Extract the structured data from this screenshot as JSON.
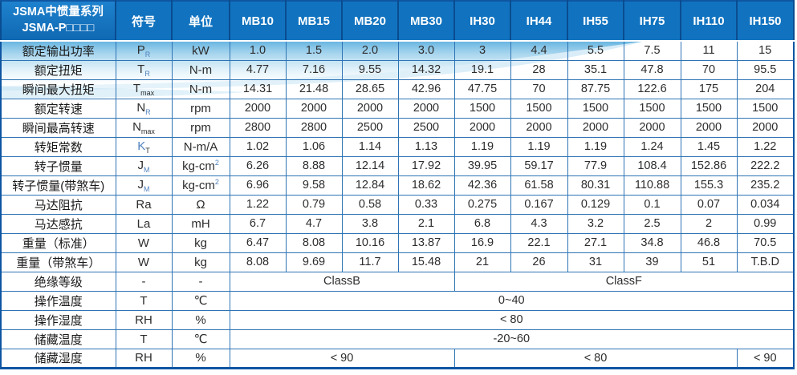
{
  "table": {
    "title_line1": "JSMA中惯量系列",
    "title_line2": "JSMA-P□□□□",
    "col_headers": [
      "符号",
      "单位",
      "MB10",
      "MB15",
      "MB20",
      "MB30",
      "IH30",
      "IH44",
      "IH55",
      "IH75",
      "IH110",
      "IH150"
    ],
    "rows": [
      {
        "label": "额定输出功率",
        "symbol": {
          "main": "P",
          "sub": "R",
          "sub_blue": true
        },
        "unit": {
          "text": "kW"
        },
        "values": [
          "1.0",
          "1.5",
          "2.0",
          "3.0",
          "3",
          "4.4",
          "5.5",
          "7.5",
          "11",
          "15"
        ]
      },
      {
        "label": "额定扭矩",
        "symbol": {
          "main": "T",
          "sub": "R",
          "sub_blue": true
        },
        "unit": {
          "text": "N-m"
        },
        "values": [
          "4.77",
          "7.16",
          "9.55",
          "14.32",
          "19.1",
          "28",
          "35.1",
          "47.8",
          "70",
          "95.5"
        ]
      },
      {
        "label": "瞬间最大扭矩",
        "symbol": {
          "main": "T",
          "sub": "max"
        },
        "unit": {
          "text": "N-m"
        },
        "values": [
          "14.31",
          "21.48",
          "28.65",
          "42.96",
          "47.75",
          "70",
          "87.75",
          "122.6",
          "175",
          "204"
        ]
      },
      {
        "label": "额定转速",
        "symbol": {
          "main": "N",
          "sub": "R",
          "sub_blue": true
        },
        "unit": {
          "text": "rpm"
        },
        "values": [
          "2000",
          "2000",
          "2000",
          "2000",
          "1500",
          "1500",
          "1500",
          "1500",
          "1500",
          "1500"
        ]
      },
      {
        "label": "瞬间最高转速",
        "symbol": {
          "main": "N",
          "sub": "max"
        },
        "unit": {
          "text": "rpm"
        },
        "values": [
          "2800",
          "2800",
          "2500",
          "2500",
          "2000",
          "2000",
          "2000",
          "2000",
          "2000",
          "2000"
        ]
      },
      {
        "label": "转矩常数",
        "symbol": {
          "main": "K",
          "main_blue": true,
          "sub": "T"
        },
        "unit": {
          "text": "N-m/A"
        },
        "values": [
          "1.02",
          "1.06",
          "1.14",
          "1.13",
          "1.19",
          "1.19",
          "1.19",
          "1.24",
          "1.45",
          "1.22"
        ]
      },
      {
        "label": "转子惯量",
        "symbol": {
          "main": "J",
          "sub": "M",
          "sub_blue": true
        },
        "unit": {
          "text": "kg-cm",
          "sup": "2"
        },
        "values": [
          "6.26",
          "8.88",
          "12.14",
          "17.92",
          "39.95",
          "59.17",
          "77.9",
          "108.4",
          "152.86",
          "222.2"
        ]
      },
      {
        "label": "转子惯量(带煞车)",
        "symbol": {
          "main": "J",
          "sub": "M",
          "sub_blue": true
        },
        "unit": {
          "text": "kg-cm",
          "sup": "2"
        },
        "values": [
          "6.96",
          "9.58",
          "12.84",
          "18.62",
          "42.36",
          "61.58",
          "80.31",
          "110.88",
          "155.3",
          "235.2"
        ]
      },
      {
        "label": "马达阻抗",
        "symbol": {
          "main": "Ra"
        },
        "unit": {
          "text": "Ω"
        },
        "values": [
          "1.22",
          "0.79",
          "0.58",
          "0.33",
          "0.275",
          "0.167",
          "0.129",
          "0.1",
          "0.07",
          "0.034"
        ]
      },
      {
        "label": "马达感抗",
        "symbol": {
          "main": "La"
        },
        "unit": {
          "text": "mH"
        },
        "values": [
          "6.7",
          "4.7",
          "3.8",
          "2.1",
          "6.8",
          "4.3",
          "3.2",
          "2.5",
          "2",
          "0.99"
        ]
      },
      {
        "label": "重量（标准）",
        "symbol": {
          "main": "W"
        },
        "unit": {
          "text": "kg"
        },
        "values": [
          "6.47",
          "8.08",
          "10.16",
          "13.87",
          "16.9",
          "22.1",
          "27.1",
          "34.8",
          "46.8",
          "70.5"
        ]
      },
      {
        "label": "重量（带煞车）",
        "symbol": {
          "main": "W"
        },
        "unit": {
          "text": "kg"
        },
        "values": [
          "8.08",
          "9.69",
          "11.7",
          "15.48",
          "21",
          "26",
          "31",
          "39",
          "51",
          "T.B.D"
        ]
      },
      {
        "label": "绝缘等级",
        "symbol": {
          "main": "-"
        },
        "unit": {
          "text": "-"
        },
        "values": [
          {
            "text": "ClassB",
            "span": 4
          },
          {
            "text": "ClassF",
            "span": 6
          }
        ]
      },
      {
        "label": "操作温度",
        "symbol": {
          "main": "T"
        },
        "unit": {
          "text": "℃"
        },
        "values": [
          {
            "text": "0~40",
            "span": 10
          }
        ]
      },
      {
        "label": "操作湿度",
        "symbol": {
          "main": "RH"
        },
        "unit": {
          "text": "%"
        },
        "values": [
          {
            "text": "< 80",
            "span": 10
          }
        ]
      },
      {
        "label": "储藏温度",
        "symbol": {
          "main": "T"
        },
        "unit": {
          "text": "℃"
        },
        "values": [
          {
            "text": "-20~60",
            "span": 10
          }
        ]
      },
      {
        "label": "储藏湿度",
        "symbol": {
          "main": "RH"
        },
        "unit": {
          "text": "%"
        },
        "values": [
          {
            "text": "< 90",
            "span": 4
          },
          {
            "text": "< 80",
            "span": 5
          },
          {
            "text": "< 90",
            "span": 1
          }
        ]
      }
    ],
    "colors": {
      "header_bg": "#1173BF",
      "header_divider": "#0A4C90",
      "grid_line": "#2E74B5",
      "outer_border": "#0E55A2",
      "subscript_blue": "#4F81BD",
      "wave_blue": "#5FB3DF"
    }
  }
}
